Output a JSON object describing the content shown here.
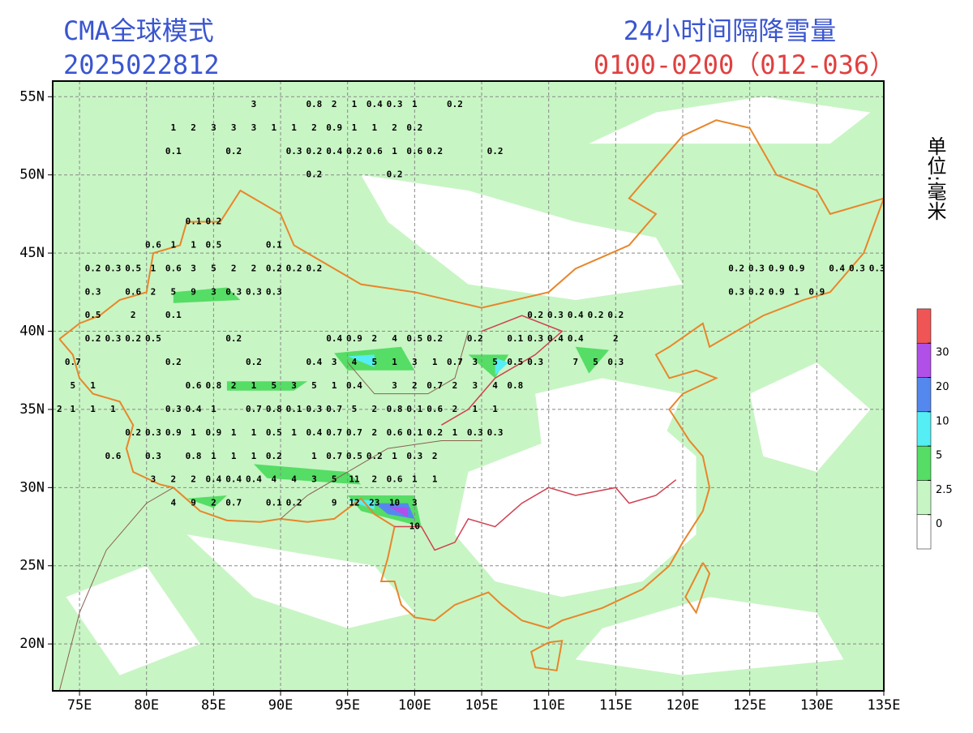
{
  "header": {
    "model": "CMA全球模式",
    "run": "2025022812",
    "product": "24小时间隔降雪量",
    "period": "0100-0200（012-036）",
    "unit": "单位:毫米"
  },
  "map": {
    "lonlim": [
      73,
      135
    ],
    "latlim": [
      17,
      56
    ],
    "lonticks": [
      {
        "value": 75,
        "label": "75E"
      },
      {
        "value": 80,
        "label": "80E"
      },
      {
        "value": 85,
        "label": "85E"
      },
      {
        "value": 90,
        "label": "90E"
      },
      {
        "value": 95,
        "label": "95E"
      },
      {
        "value": 100,
        "label": "100E"
      },
      {
        "value": 105,
        "label": "105E"
      },
      {
        "value": 110,
        "label": "110E"
      },
      {
        "value": 115,
        "label": "115E"
      },
      {
        "value": 120,
        "label": "120E"
      },
      {
        "value": 125,
        "label": "125E"
      },
      {
        "value": 130,
        "label": "130E"
      },
      {
        "value": 135,
        "label": "135E"
      }
    ],
    "latticks": [
      {
        "value": 20,
        "label": "20N"
      },
      {
        "value": 25,
        "label": "25N"
      },
      {
        "value": 30,
        "label": "30N"
      },
      {
        "value": 35,
        "label": "35N"
      },
      {
        "value": 40,
        "label": "40N"
      },
      {
        "value": 45,
        "label": "45N"
      },
      {
        "value": 50,
        "label": "50N"
      },
      {
        "value": 55,
        "label": "55N"
      }
    ],
    "grid": true,
    "stations": [
      {
        "lat": 54.5,
        "lon": [
          88,
          92.5,
          94,
          95.5,
          97,
          98.5,
          100,
          103
        ],
        "values": [
          3,
          0.8,
          2,
          1,
          0.4,
          0.3,
          1,
          0.2
        ]
      },
      {
        "lat": 53,
        "lon": [
          82,
          83.5,
          85,
          86.5,
          88,
          89.5,
          91,
          92.5,
          94,
          95.5,
          97,
          98.5,
          100
        ],
        "values": [
          1,
          2,
          3,
          3,
          3,
          1,
          1,
          2,
          0.9,
          1,
          1,
          2,
          0.2
        ]
      },
      {
        "lat": 51.5,
        "lon": [
          82,
          86.5,
          91,
          92.5,
          94,
          95.5,
          97,
          98.5,
          100,
          101.5,
          106
        ],
        "values": [
          0.1,
          0.2,
          0.3,
          0.2,
          0.4,
          0.2,
          0.6,
          1,
          0.6,
          0.2,
          0.2
        ]
      },
      {
        "lat": 50,
        "lon": [
          92.5,
          98.5
        ],
        "values": [
          0.2,
          0.2
        ]
      },
      {
        "lat": 47,
        "lon": [
          83.5,
          85
        ],
        "values": [
          0.1,
          0.2
        ]
      },
      {
        "lat": 45.5,
        "lon": [
          80.5,
          82,
          83.5,
          85,
          89.5
        ],
        "values": [
          0.6,
          1,
          1,
          0.5,
          0.1
        ]
      },
      {
        "lat": 44,
        "lon": [
          76,
          77.5,
          79,
          80.5,
          82,
          83.5,
          85,
          86.5,
          88,
          89.5,
          91,
          92.5,
          124,
          125.5,
          127,
          128.5,
          131.5,
          133,
          134.5
        ],
        "values": [
          0.2,
          0.3,
          0.5,
          1,
          0.6,
          3,
          5,
          2,
          2,
          0.2,
          0.2,
          0.2,
          0.2,
          0.3,
          0.9,
          0.9,
          0.4,
          0.3,
          0.3
        ]
      },
      {
        "lat": 42.5,
        "lon": [
          76,
          79,
          80.5,
          82,
          83.5,
          85,
          86.5,
          88,
          89.5,
          124,
          125.5,
          127,
          128.5,
          130
        ],
        "values": [
          0.3,
          0.6,
          2,
          5,
          9,
          3,
          0.3,
          0.3,
          0.3,
          0.3,
          0.2,
          0.9,
          1,
          0.9
        ]
      },
      {
        "lat": 41,
        "lon": [
          76,
          79,
          82,
          109,
          110.5,
          112,
          113.5,
          115
        ],
        "values": [
          0.5,
          2,
          0.1,
          0.2,
          0.3,
          0.4,
          0.2,
          0.2
        ]
      },
      {
        "lat": 39.5,
        "lon": [
          76,
          77.5,
          79,
          80.5,
          86.5,
          94,
          95.5,
          97,
          98.5,
          100,
          101.5,
          104.5,
          107.5,
          109,
          110.5,
          112,
          115
        ],
        "values": [
          0.2,
          0.3,
          0.2,
          0.5,
          0.2,
          0.4,
          0.9,
          2,
          4,
          0.5,
          0.2,
          0.2,
          0.1,
          0.3,
          0.4,
          0.4,
          2
        ]
      },
      {
        "lat": 38,
        "lon": [
          74.5,
          82,
          88,
          92.5,
          94,
          95.5,
          97,
          98.5,
          100,
          101.5,
          103,
          104.5,
          106,
          107.5,
          109,
          112,
          113.5,
          115
        ],
        "values": [
          0.7,
          0.2,
          0.2,
          0.4,
          3,
          4,
          5,
          1,
          3,
          1,
          0.7,
          3,
          5,
          0.5,
          0.3,
          7,
          5,
          0.3
        ]
      },
      {
        "lat": 36.5,
        "lon": [
          74.5,
          76,
          83.5,
          85,
          86.5,
          88,
          89.5,
          91,
          92.5,
          94,
          95.5,
          98.5,
          100,
          101.5,
          103,
          104.5,
          106,
          107.5
        ],
        "values": [
          5,
          1,
          0.6,
          0.8,
          2,
          1,
          5,
          3,
          5,
          1,
          0.4,
          3,
          2,
          0.7,
          2,
          3,
          4,
          0.8
        ]
      },
      {
        "lat": 35,
        "lon": [
          73.5,
          74.5,
          76,
          77.5,
          82,
          83.5,
          85,
          88,
          89.5,
          91,
          92.5,
          94,
          95.5,
          97,
          98.5,
          100,
          101.5,
          103,
          104.5,
          106
        ],
        "values": [
          2,
          1,
          1,
          1,
          0.3,
          0.4,
          1,
          0.7,
          0.8,
          0.1,
          0.3,
          0.7,
          5,
          2,
          0.8,
          0.1,
          0.6,
          2,
          1,
          1
        ]
      },
      {
        "lat": 33.5,
        "lon": [
          79,
          80.5,
          82,
          83.5,
          85,
          86.5,
          88,
          89.5,
          91,
          92.5,
          94,
          95.5,
          97,
          98.5,
          100,
          101.5,
          103,
          104.5,
          106
        ],
        "values": [
          0.2,
          0.3,
          0.9,
          1,
          0.9,
          1,
          1,
          0.5,
          1,
          0.4,
          0.7,
          0.7,
          2,
          0.6,
          0.1,
          0.2,
          1,
          0.3,
          0.3
        ]
      },
      {
        "lat": 32,
        "lon": [
          77.5,
          80.5,
          83.5,
          85,
          86.5,
          88,
          89.5,
          92.5,
          94,
          95.5,
          97,
          98.5,
          100,
          101.5
        ],
        "values": [
          0.6,
          0.3,
          0.8,
          1,
          1,
          1,
          0.2,
          1,
          0.7,
          0.5,
          0.2,
          1,
          0.3,
          2
        ]
      },
      {
        "lat": 30.5,
        "lon": [
          80.5,
          82,
          83.5,
          85,
          86.5,
          88,
          89.5,
          91,
          92.5,
          94,
          95.5,
          97,
          98.5,
          100,
          101.5
        ],
        "values": [
          3,
          2,
          2,
          0.4,
          0.4,
          0.4,
          4,
          4,
          3,
          5,
          11,
          2,
          0.6,
          1,
          1
        ]
      },
      {
        "lat": 29,
        "lon": [
          82,
          83.5,
          85,
          86.5,
          89.5,
          91,
          94,
          95.5,
          97,
          98.5,
          100
        ],
        "values": [
          4,
          9,
          2,
          0.7,
          0.1,
          0.2,
          9,
          12,
          23,
          10,
          3
        ]
      },
      {
        "lat": 27.5,
        "lon": [
          100
        ],
        "values": [
          10
        ]
      }
    ]
  },
  "legend": {
    "levels": [
      0,
      2.5,
      5,
      10,
      20,
      30
    ],
    "colors": [
      "#ffffff",
      "#c8f5c4",
      "#55dd66",
      "#55eef5",
      "#5588ee",
      "#b050e8",
      "#f05555"
    ]
  }
}
